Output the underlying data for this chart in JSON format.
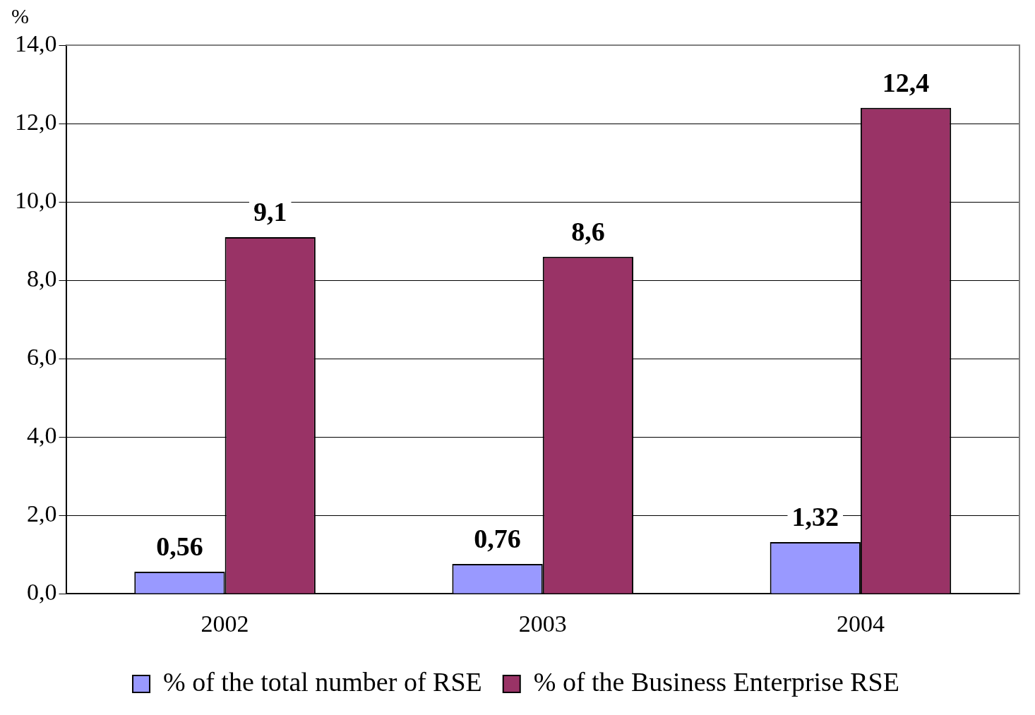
{
  "chart_data": {
    "type": "bar",
    "ylabel": "%",
    "categories": [
      "2002",
      "2003",
      "2004"
    ],
    "series": [
      {
        "name": "% of the total number of RSE",
        "color": "#9999ff",
        "values": [
          0.56,
          0.76,
          1.32
        ],
        "value_labels": [
          "0,56",
          "0,76",
          "1,32"
        ]
      },
      {
        "name": "% of the Business Enterprise RSE",
        "color": "#993366",
        "values": [
          9.1,
          8.6,
          12.4
        ],
        "value_labels": [
          "9,1",
          "8,6",
          "12,4"
        ]
      }
    ],
    "ylim": [
      0,
      14
    ],
    "yticks": [
      {
        "value": 0,
        "label": "0,0"
      },
      {
        "value": 2,
        "label": "2,0"
      },
      {
        "value": 4,
        "label": "4,0"
      },
      {
        "value": 6,
        "label": "6,0"
      },
      {
        "value": 8,
        "label": "8,0"
      },
      {
        "value": 10,
        "label": "10,0"
      },
      {
        "value": 12,
        "label": "12,0"
      },
      {
        "value": 14,
        "label": "14,0"
      }
    ],
    "grid": "y",
    "legend": "bottom"
  }
}
